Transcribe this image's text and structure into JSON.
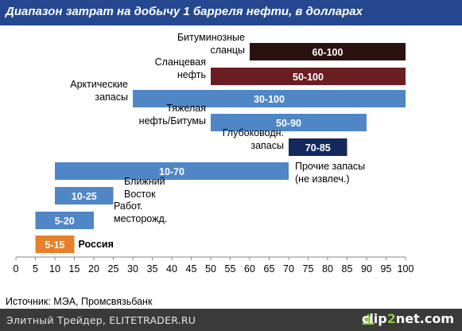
{
  "chart_data": {
    "type": "bar",
    "title": "Диапазон затрат на добычу 1 барреля нефти, в долларах",
    "xlim": [
      0,
      100
    ],
    "x_ticks": [
      "0",
      "5",
      "10",
      "15",
      "20",
      "25",
      "30",
      "35",
      "40",
      "45",
      "50",
      "55",
      "60",
      "65",
      "70",
      "75",
      "80",
      "85",
      "90",
      "95",
      "100"
    ],
    "series": [
      {
        "label_lines": [
          "Битуминозные",
          "сланцы"
        ],
        "start": 60,
        "end": 100,
        "value_label": "60-100",
        "color": "#2b1210"
      },
      {
        "label_lines": [
          "Сланцевая",
          "нефть"
        ],
        "start": 50,
        "end": 100,
        "value_label": "50-100",
        "color": "#6b1e21"
      },
      {
        "label_lines": [
          "Арктические",
          "запасы"
        ],
        "start": 30,
        "end": 100,
        "value_label": "30-100",
        "color": "#4f86c6"
      },
      {
        "label_lines": [
          "Тяжелая",
          "нефть/Битумы"
        ],
        "start": 50,
        "end": 90,
        "value_label": "50-90",
        "color": "#4f86c6"
      },
      {
        "label_lines": [
          "Глубоководн.",
          "запасы"
        ],
        "start": 70,
        "end": 85,
        "value_label": "70-85",
        "color": "#13295e"
      },
      {
        "label_lines": [
          "Прочие запасы",
          "(не извлеч.)"
        ],
        "start": 10,
        "end": 70,
        "value_label": "10-70",
        "color": "#4f86c6"
      },
      {
        "label_lines": [
          "Ближний",
          "Восток"
        ],
        "start": 10,
        "end": 25,
        "value_label": "10-25",
        "color": "#4f86c6"
      },
      {
        "label_lines": [
          "Работ.",
          "месторожд."
        ],
        "start": 5,
        "end": 20,
        "value_label": "5-20",
        "color": "#4f86c6"
      },
      {
        "label_lines": [
          "Россия"
        ],
        "start": 5,
        "end": 15,
        "value_label": "5-15",
        "color": "#e8802a"
      }
    ]
  },
  "source": "Источник: МЭА, Промсвязьбанк",
  "footer": {
    "text": "Элитный Трейдер, ELITETRADER.RU",
    "logo_a": "clip",
    "logo_o": "2",
    "logo_b": "net.com"
  }
}
